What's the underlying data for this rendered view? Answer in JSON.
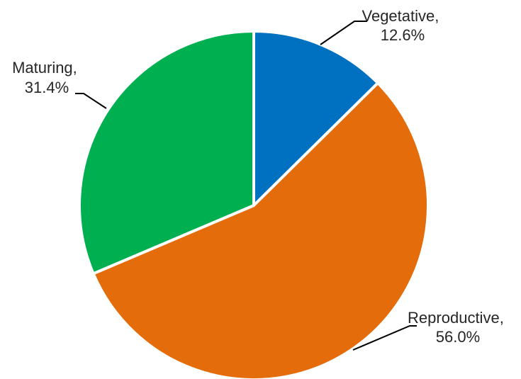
{
  "chart_data": {
    "type": "pie",
    "title": "",
    "slices": [
      {
        "label": "Vegetative",
        "value": 12.6,
        "value_text": "12.6%",
        "color": "#0070C0"
      },
      {
        "label": "Reproductive",
        "value": 56.0,
        "value_text": "56.0%",
        "color": "#E46C0A"
      },
      {
        "label": "Maturing",
        "value": 31.4,
        "value_text": "31.4%",
        "color": "#00B050"
      }
    ],
    "start_angle": "12 o'clock",
    "direction": "clockwise",
    "legend": "none",
    "data_labels": "outside with leader lines"
  }
}
